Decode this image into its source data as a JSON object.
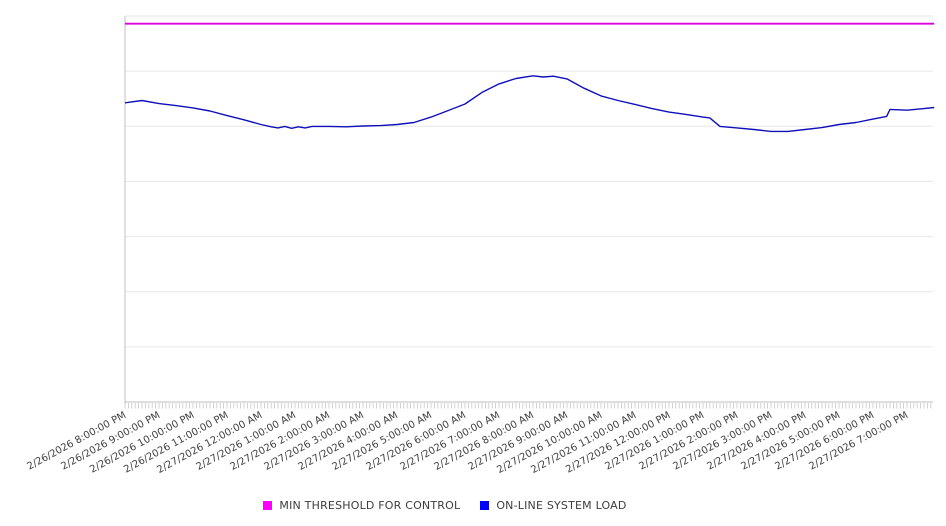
{
  "page": {
    "background": "#ffffff"
  },
  "chart_data": {
    "type": "line",
    "title": "",
    "xlabel": "",
    "ylabel": "",
    "x": {
      "tick_labels": [
        "2/26/2026 8:00:00 PM",
        "2/26/2026 9:00:00 PM",
        "2/26/2026 10:00:00 PM",
        "2/26/2026 11:00:00 PM",
        "2/27/2026 12:00:00 AM",
        "2/27/2026 1:00:00 AM",
        "2/27/2026 2:00:00 AM",
        "2/27/2026 3:00:00 AM",
        "2/27/2026 4:00:00 AM",
        "2/27/2026 5:00:00 AM",
        "2/27/2026 6:00:00 AM",
        "2/27/2026 7:00:00 AM",
        "2/27/2026 8:00:00 AM",
        "2/27/2026 9:00:00 AM",
        "2/27/2026 10:00:00 AM",
        "2/27/2026 11:00:00 AM",
        "2/27/2026 12:00:00 PM",
        "2/27/2026 1:00:00 PM",
        "2/27/2026 2:00:00 PM",
        "2/27/2026 3:00:00 PM",
        "2/27/2026 4:00:00 PM",
        "2/27/2026 5:00:00 PM",
        "2/27/2026 6:00:00 PM",
        "2/27/2026 7:00:00 PM"
      ],
      "minor_ticks_per_hour": 10,
      "label_rotation_deg": -28.5,
      "hours_shown": 23.8
    },
    "y": {
      "labeled": false,
      "gridline_rows": 7,
      "ylim": [
        0,
        100
      ],
      "range_note": "y-axis has no visible tick labels; series values are expressed as percent of plot height (0 = bottom axis, 100 = top gridline)"
    },
    "grid": "horizontal-only",
    "series": [
      {
        "name": "MIN THRESHOLD FOR CONTROL",
        "line_color": "#DD00DD",
        "line_width": 1.8,
        "points": [
          [
            0,
            98
          ],
          [
            23.8,
            98
          ]
        ]
      },
      {
        "name": "ON-LINE SYSTEM LOAD",
        "line_color": "#1010BB",
        "line_width": 1.4,
        "points": [
          [
            0,
            77.5
          ],
          [
            0.5,
            78.1
          ],
          [
            1,
            77.3
          ],
          [
            1.5,
            76.8
          ],
          [
            2,
            76.2
          ],
          [
            2.5,
            75.4
          ],
          [
            3,
            74.2
          ],
          [
            3.5,
            73.1
          ],
          [
            4,
            71.9
          ],
          [
            4.3,
            71.3
          ],
          [
            4.5,
            71.0
          ],
          [
            4.7,
            71.4
          ],
          [
            4.9,
            70.9
          ],
          [
            5.1,
            71.3
          ],
          [
            5.3,
            71.0
          ],
          [
            5.5,
            71.4
          ],
          [
            6,
            71.4
          ],
          [
            6.5,
            71.3
          ],
          [
            7,
            71.5
          ],
          [
            7.5,
            71.6
          ],
          [
            8,
            71.9
          ],
          [
            8.5,
            72.4
          ],
          [
            9,
            73.8
          ],
          [
            9.5,
            75.5
          ],
          [
            10,
            77.2
          ],
          [
            10.5,
            80.2
          ],
          [
            11,
            82.4
          ],
          [
            11.5,
            83.8
          ],
          [
            12,
            84.5
          ],
          [
            12.3,
            84.2
          ],
          [
            12.6,
            84.4
          ],
          [
            13,
            83.7
          ],
          [
            13.5,
            81.3
          ],
          [
            14,
            79.3
          ],
          [
            14.5,
            78.1
          ],
          [
            15,
            77.1
          ],
          [
            15.5,
            76.0
          ],
          [
            16,
            75.1
          ],
          [
            16.5,
            74.5
          ],
          [
            17,
            73.8
          ],
          [
            17.2,
            73.6
          ],
          [
            17.5,
            71.4
          ],
          [
            18,
            71.0
          ],
          [
            18.5,
            70.6
          ],
          [
            19,
            70.1
          ],
          [
            19.5,
            70.1
          ],
          [
            20,
            70.6
          ],
          [
            20.5,
            71.1
          ],
          [
            21,
            71.9
          ],
          [
            21.5,
            72.4
          ],
          [
            22,
            73.3
          ],
          [
            22.4,
            74.0
          ],
          [
            22.5,
            75.8
          ],
          [
            23,
            75.6
          ],
          [
            23.5,
            76.0
          ],
          [
            23.8,
            76.3
          ]
        ]
      }
    ],
    "legend": {
      "position": "bottom-center",
      "items": [
        {
          "label": "MIN THRESHOLD FOR CONTROL",
          "swatch_color": "#FF00FF"
        },
        {
          "label": "ON-LINE SYSTEM LOAD",
          "swatch_color": "#0000FF"
        }
      ]
    },
    "axis_colors": {
      "gridline": "#e7e7e7",
      "axis": "#bfbfbf",
      "tick": "#c9c9c9",
      "label_text": "#404040"
    }
  }
}
